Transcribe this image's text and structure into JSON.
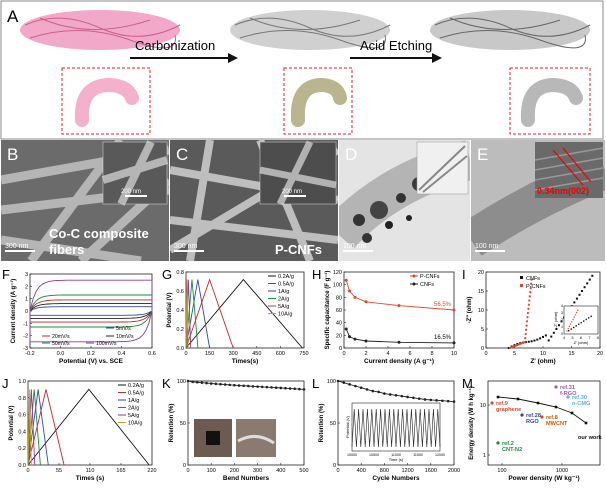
{
  "letters": [
    "A",
    "B",
    "C",
    "D",
    "E",
    "F",
    "G",
    "H",
    "I",
    "J",
    "K",
    "L",
    "M"
  ],
  "schematic": {
    "step1": "Carbonization",
    "step2": "Acid Etching"
  },
  "sem": {
    "B": {
      "scale": "300 nm",
      "inset_scale": "200 nm",
      "caption_line1": "Co-C composite",
      "caption_line2": "fibers"
    },
    "C": {
      "scale": "300 nm",
      "inset_scale": "200 nm",
      "caption": "P-CNFs"
    },
    "D": {
      "scale": "100 nm"
    },
    "E": {
      "scale": "100 nm",
      "lattice": "0.34nm(002)"
    }
  },
  "chart_data": [
    {
      "panel": "F",
      "type": "line",
      "xlabel": "Potential (V) vs. SCE",
      "ylabel": "Current density (A g⁻¹)",
      "xlim": [
        -0.2,
        0.6
      ],
      "xticks": [
        "-0.2",
        "0.0",
        "0.2",
        "0.4",
        "0.6"
      ],
      "ylim": [
        -3,
        3
      ],
      "yticks": [
        "-3",
        "-2",
        "-1",
        "0",
        "1",
        "2",
        "3"
      ],
      "series": [
        {
          "name": "5mV/s",
          "amp": 0.35,
          "color": "#2b4aa8"
        },
        {
          "name": "10mV/s",
          "amp": 0.6,
          "color": "#222222"
        },
        {
          "name": "20mV/s",
          "amp": 0.9,
          "color": "#c02a2a"
        },
        {
          "name": "50mV/s",
          "amp": 1.3,
          "color": "#1a8a3a"
        },
        {
          "name": "100mV/s",
          "amp": 2.5,
          "color": "#8a3aa8"
        }
      ]
    },
    {
      "panel": "G",
      "type": "line",
      "xlabel": "Times(s)",
      "ylabel": "Potential (V)",
      "xlim": [
        0,
        750
      ],
      "xticks": [
        "0",
        "150",
        "300",
        "450",
        "600",
        "750"
      ],
      "ylim": [
        0,
        0.8
      ],
      "yticks": [
        "0.0",
        "0.2",
        "0.4",
        "0.6",
        "0.8"
      ],
      "series": [
        {
          "name": "0.2A/g",
          "peak": 365,
          "end": 740,
          "color": "#111111"
        },
        {
          "name": "0.5A/g",
          "peak": 150,
          "end": 300,
          "color": "#c02a2a"
        },
        {
          "name": "1A/g",
          "peak": 75,
          "end": 150,
          "color": "#2b4aa8"
        },
        {
          "name": "2A/g",
          "peak": 38,
          "end": 76,
          "color": "#1a8a3a"
        },
        {
          "name": "5A/g",
          "peak": 15,
          "end": 30,
          "color": "#8a3aa8"
        },
        {
          "name": "10A/g",
          "peak": 7,
          "end": 14,
          "color": "#c8a020"
        }
      ]
    },
    {
      "panel": "H",
      "type": "line",
      "xlabel": "Current density (A g⁻¹)",
      "ylabel": "Specific capacitance (F g⁻¹)",
      "xlim": [
        0,
        10
      ],
      "xticks": [
        "0",
        "2",
        "4",
        "6",
        "8",
        "10"
      ],
      "ylim": [
        0,
        120
      ],
      "yticks": [
        "0",
        "20",
        "40",
        "60",
        "80",
        "100",
        "120"
      ],
      "series": [
        {
          "name": "P-CNFs",
          "color": "#e0462a",
          "x": [
            0.2,
            0.5,
            1,
            2,
            5,
            10
          ],
          "y": [
            107,
            90,
            80,
            73,
            67,
            60
          ]
        },
        {
          "name": "CNFs",
          "color": "#222222",
          "x": [
            0.2,
            0.5,
            1,
            2,
            5,
            10
          ],
          "y": [
            30,
            18,
            14,
            11,
            9,
            8
          ]
        }
      ],
      "annotations": [
        "56.5%",
        "16.5%"
      ]
    },
    {
      "panel": "I",
      "type": "scatter",
      "xlabel": "Z' (ohm)",
      "ylabel": "-Z\" (ohm)",
      "xlim": [
        0,
        20
      ],
      "xticks": [
        "0",
        "5",
        "10",
        "15",
        "20"
      ],
      "ylim": [
        0,
        20
      ],
      "yticks": [
        "0",
        "5",
        "10",
        "15",
        "20"
      ],
      "series": [
        {
          "name": "CNFs",
          "color": "#111111"
        },
        {
          "name": "P-CNFs",
          "color": "#e0462a"
        }
      ],
      "inset": {
        "xlabel": "Z' (ohm)",
        "ylabel": "-Z\" (ohm)",
        "xticks": [
          "4",
          "5",
          "6",
          "7",
          "8"
        ],
        "yticks": [
          "0",
          "1",
          "2",
          "3",
          "4"
        ]
      }
    },
    {
      "panel": "J",
      "type": "line",
      "xlabel": "Times (s)",
      "ylabel": "Potential (V)",
      "xlim": [
        0,
        220
      ],
      "xticks": [
        "0",
        "55",
        "110",
        "165",
        "220"
      ],
      "ylim": [
        0,
        1.0
      ],
      "yticks": [
        "0.0",
        "0.2",
        "0.4",
        "0.6",
        "0.8",
        "1.0"
      ],
      "series": [
        {
          "name": "0.2A/g",
          "peak": 108,
          "end": 215,
          "color": "#111111"
        },
        {
          "name": "0.5A/g",
          "peak": 32,
          "end": 64,
          "color": "#c02a2a"
        },
        {
          "name": "1A/g",
          "peak": 18,
          "end": 36,
          "color": "#2b4aa8"
        },
        {
          "name": "2A/g",
          "peak": 11,
          "end": 22,
          "color": "#1a8a3a"
        },
        {
          "name": "5A/g",
          "peak": 6,
          "end": 12,
          "color": "#8a3aa8"
        },
        {
          "name": "10A/g",
          "peak": 3,
          "end": 6,
          "color": "#c8a020"
        }
      ]
    },
    {
      "panel": "K",
      "type": "line",
      "xlabel": "Bend Numbers",
      "ylabel": "Retention (%)",
      "xlim": [
        0,
        500
      ],
      "xticks": [
        "0",
        "100",
        "200",
        "300",
        "400",
        "500"
      ],
      "ylim": [
        0,
        100
      ],
      "yticks": [
        "0",
        "50",
        "100"
      ],
      "series": [
        {
          "name": "",
          "color": "#222222",
          "x": [
            0,
            20,
            40,
            60,
            80,
            100,
            120,
            140,
            160,
            180,
            200,
            220,
            240,
            260,
            280,
            300,
            320,
            340,
            360,
            380,
            400,
            420,
            440,
            460,
            480,
            500
          ],
          "y": [
            100,
            99,
            98.5,
            98,
            97.5,
            97,
            96.6,
            96.2,
            95.8,
            95.4,
            95,
            94.6,
            94.3,
            94,
            93.6,
            93.3,
            93,
            92.7,
            92.4,
            92,
            91.7,
            91.4,
            91,
            90.7,
            90.4,
            90
          ]
        }
      ]
    },
    {
      "panel": "L",
      "type": "line",
      "xlabel": "Cycle Numbers",
      "ylabel": "Retention (%)",
      "xlim": [
        0,
        2000
      ],
      "xticks": [
        "0",
        "400",
        "800",
        "1200",
        "1600",
        "2000"
      ],
      "ylim": [
        0,
        100
      ],
      "yticks": [
        "0",
        "50",
        "100"
      ],
      "series": [
        {
          "name": "",
          "color": "#222222",
          "x": [
            0,
            100,
            200,
            300,
            400,
            500,
            600,
            700,
            800,
            900,
            1000,
            1100,
            1200,
            1300,
            1400,
            1500,
            1600,
            1700,
            1800,
            1900,
            2000
          ],
          "y": [
            100,
            98,
            96,
            94,
            92,
            90,
            88,
            87,
            85,
            84,
            83,
            82,
            81,
            80,
            79,
            78,
            77.5,
            77,
            76.5,
            76,
            75.5
          ]
        }
      ],
      "inset": {
        "xlabel": "Time (s)",
        "ylabel": "Potential (V)",
        "xticks": [
          "10000",
          "10500",
          "11000",
          "11500",
          "12000"
        ]
      }
    },
    {
      "panel": "M",
      "type": "scatter",
      "xlabel": "Power density (W kg⁻¹)",
      "ylabel": "Energy density (W h kg⁻¹)",
      "xticks": [
        "100",
        "1000"
      ],
      "yticks": [
        "1",
        "10"
      ],
      "series": [
        {
          "name": "our work",
          "color": "#111111"
        }
      ],
      "annotations": [
        {
          "text": "ref.31",
          "sub": "f-RGO",
          "color": "#9b59b6"
        },
        {
          "text": "ref.9",
          "sub": "graphene",
          "color": "#e0462a"
        },
        {
          "text": "ref.28",
          "sub": "RGO",
          "color": "#2b4aa8"
        },
        {
          "text": "ref.8",
          "sub": "MWCNT",
          "color": "#d35400"
        },
        {
          "text": "ref.30",
          "sub": "n-CMG",
          "color": "#5dade2"
        },
        {
          "text": "ref.2",
          "sub": "CNT-N2",
          "color": "#1a8a3a"
        },
        {
          "text": "our work",
          "sub": "",
          "color": "#111111"
        }
      ]
    }
  ]
}
